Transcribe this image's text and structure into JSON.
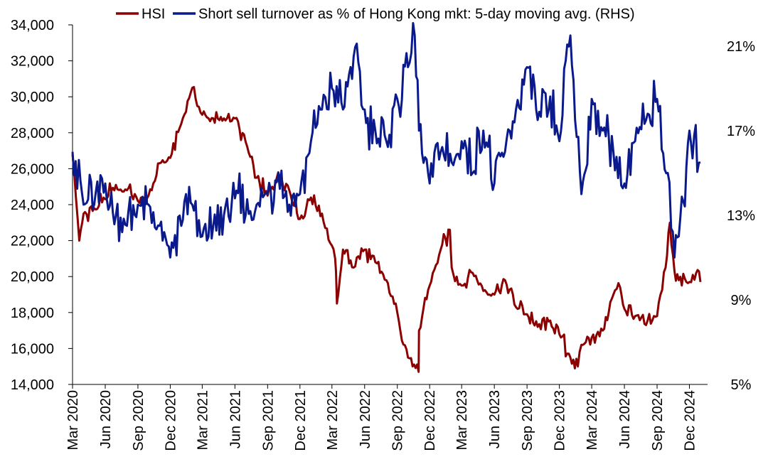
{
  "chart_data": {
    "type": "line",
    "title": "",
    "xlabel": "",
    "ylabel": "",
    "y2label": "",
    "x_tick_labels": [
      "Mar 2020",
      "Jun 2020",
      "Sep 2020",
      "Dec 2020",
      "Mar 2021",
      "Jun 2021",
      "Sep 2021",
      "Dec 2021",
      "Mar 2022",
      "Jun 2022",
      "Sep 2022",
      "Dec 2022",
      "Mar 2023",
      "Jun 2023",
      "Sep 2023",
      "Dec 2023",
      "Mar 2024",
      "Jun 2024",
      "Sep 2024",
      "Dec 2024"
    ],
    "x_range": [
      "2020-03",
      "2025-01"
    ],
    "ylim": [
      14000,
      34000
    ],
    "y_ticks": [
      "14,000",
      "16,000",
      "18,000",
      "20,000",
      "22,000",
      "24,000",
      "26,000",
      "28,000",
      "30,000",
      "32,000",
      "34,000"
    ],
    "y2lim": [
      5,
      22
    ],
    "y2_ticks": [
      "5%",
      "9%",
      "13%",
      "17%",
      "21%"
    ],
    "legend_position": "top",
    "grid": false,
    "series": [
      {
        "name": "HSI",
        "axis": "left",
        "color": "#8B0000",
        "points": [
          [
            "2020-03",
            26800
          ],
          [
            "2020-03-20",
            22000
          ],
          [
            "2020-04",
            23500
          ],
          [
            "2020-05",
            23800
          ],
          [
            "2020-06",
            24300
          ],
          [
            "2020-07",
            25100
          ],
          [
            "2020-08",
            24800
          ],
          [
            "2020-09",
            24200
          ],
          [
            "2020-10",
            24500
          ],
          [
            "2020-11",
            26300
          ],
          [
            "2020-12",
            26600
          ],
          [
            "2021-01",
            28500
          ],
          [
            "2021-02",
            30500
          ],
          [
            "2021-03",
            29000
          ],
          [
            "2021-04",
            28800
          ],
          [
            "2021-05",
            28800
          ],
          [
            "2021-06",
            28800
          ],
          [
            "2021-07",
            27500
          ],
          [
            "2021-08",
            25500
          ],
          [
            "2021-09",
            24500
          ],
          [
            "2021-10",
            25800
          ],
          [
            "2021-11",
            24800
          ],
          [
            "2021-12",
            23200
          ],
          [
            "2022-01",
            24400
          ],
          [
            "2022-02",
            23500
          ],
          [
            "2022-03-10",
            21000
          ],
          [
            "2022-03-15",
            18500
          ],
          [
            "2022-04",
            21500
          ],
          [
            "2022-05",
            20500
          ],
          [
            "2022-06",
            21500
          ],
          [
            "2022-07",
            20800
          ],
          [
            "2022-08",
            19800
          ],
          [
            "2022-09",
            18000
          ],
          [
            "2022-10",
            15500
          ],
          [
            "2022-10-31",
            14700
          ],
          [
            "2022-11",
            17000
          ],
          [
            "2022-12",
            19500
          ],
          [
            "2023-01",
            21500
          ],
          [
            "2023-01-27",
            22600
          ],
          [
            "2023-02",
            20500
          ],
          [
            "2023-03",
            19500
          ],
          [
            "2023-04",
            20200
          ],
          [
            "2023-05",
            19200
          ],
          [
            "2023-06",
            19000
          ],
          [
            "2023-07",
            19800
          ],
          [
            "2023-08",
            18300
          ],
          [
            "2023-09",
            17900
          ],
          [
            "2023-10",
            17200
          ],
          [
            "2023-11",
            17500
          ],
          [
            "2023-12",
            16800
          ],
          [
            "2024-01",
            15500
          ],
          [
            "2024-01-22",
            15000
          ],
          [
            "2024-02",
            16200
          ],
          [
            "2024-03",
            16600
          ],
          [
            "2024-04",
            17000
          ],
          [
            "2024-05",
            19000
          ],
          [
            "2024-05-20",
            19400
          ],
          [
            "2024-06",
            18200
          ],
          [
            "2024-07",
            17800
          ],
          [
            "2024-08",
            17300
          ],
          [
            "2024-09",
            17800
          ],
          [
            "2024-09-25",
            20500
          ],
          [
            "2024-10-07",
            23000
          ],
          [
            "2024-10-20",
            20300
          ],
          [
            "2024-11",
            19800
          ],
          [
            "2024-12",
            19700
          ],
          [
            "2024-12-20",
            20200
          ],
          [
            "2025-01",
            19700
          ]
        ]
      },
      {
        "name": "Short sell turnover as % of Hong Kong mkt: 5-day moving avg. (RHS)",
        "axis": "right",
        "color": "#0A1A8C",
        "points": [
          [
            "2020-03",
            16.0
          ],
          [
            "2020-04",
            13.5
          ],
          [
            "2020-05",
            13.5
          ],
          [
            "2020-06",
            14.5
          ],
          [
            "2020-07",
            13.0
          ],
          [
            "2020-08",
            12.5
          ],
          [
            "2020-09",
            13.5
          ],
          [
            "2020-10",
            13.5
          ],
          [
            "2020-11",
            12.5
          ],
          [
            "2020-12",
            11.0
          ],
          [
            "2021-01",
            12.5
          ],
          [
            "2021-02",
            13.5
          ],
          [
            "2021-03",
            12.0
          ],
          [
            "2021-04",
            12.5
          ],
          [
            "2021-05",
            13.0
          ],
          [
            "2021-06",
            13.8
          ],
          [
            "2021-07",
            13.0
          ],
          [
            "2021-08",
            13.5
          ],
          [
            "2021-09",
            14.0
          ],
          [
            "2021-10",
            15.0
          ],
          [
            "2021-11",
            13.5
          ],
          [
            "2021-12",
            14.0
          ],
          [
            "2022-01",
            16.5
          ],
          [
            "2022-02",
            18.0
          ],
          [
            "2022-03",
            19.0
          ],
          [
            "2022-04",
            18.0
          ],
          [
            "2022-05",
            20.5
          ],
          [
            "2022-06",
            18.0
          ],
          [
            "2022-07",
            17.0
          ],
          [
            "2022-08",
            16.5
          ],
          [
            "2022-09",
            18.5
          ],
          [
            "2022-10",
            20.0
          ],
          [
            "2022-10-20",
            21.5
          ],
          [
            "2022-11",
            17.0
          ],
          [
            "2022-12",
            14.5
          ],
          [
            "2023-01",
            16.0
          ],
          [
            "2023-02",
            15.5
          ],
          [
            "2023-03",
            16.5
          ],
          [
            "2023-04",
            15.0
          ],
          [
            "2023-05",
            17.0
          ],
          [
            "2023-06",
            14.5
          ],
          [
            "2023-07",
            16.0
          ],
          [
            "2023-08",
            18.0
          ],
          [
            "2023-09",
            20.0
          ],
          [
            "2023-10",
            17.5
          ],
          [
            "2023-11",
            18.0
          ],
          [
            "2023-12",
            16.5
          ],
          [
            "2024-01",
            21.5
          ],
          [
            "2024-02",
            14.0
          ],
          [
            "2024-03",
            18.5
          ],
          [
            "2024-04",
            17.0
          ],
          [
            "2024-05",
            16.0
          ],
          [
            "2024-06",
            14.5
          ],
          [
            "2024-07",
            16.5
          ],
          [
            "2024-08",
            17.5
          ],
          [
            "2024-09",
            18.5
          ],
          [
            "2024-10",
            15.0
          ],
          [
            "2024-10-20",
            11.0
          ],
          [
            "2024-11",
            12.0
          ],
          [
            "2024-12",
            17.0
          ],
          [
            "2025-01",
            15.5
          ]
        ]
      }
    ]
  }
}
